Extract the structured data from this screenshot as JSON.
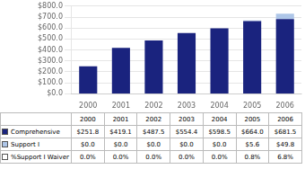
{
  "chart_data": {
    "type": "bar",
    "stacked": true,
    "categories": [
      "2000",
      "2001",
      "2002",
      "2003",
      "2004",
      "2005",
      "2006"
    ],
    "series": [
      {
        "name": "Comprehensive",
        "color": "#1a237e",
        "values": [
          251.8,
          419.1,
          487.5,
          554.4,
          598.5,
          664.0,
          681.5
        ],
        "value_labels": [
          "$251.8",
          "$419.1",
          "$487.5",
          "$554.4",
          "$598.5",
          "$664.0",
          "$681.5"
        ]
      },
      {
        "name": "Support I",
        "color": "#aec6e8",
        "values": [
          0.0,
          0.0,
          0.0,
          0.0,
          0.0,
          5.6,
          49.8
        ],
        "value_labels": [
          "$0.0",
          "$0.0",
          "$0.0",
          "$0.0",
          "$0.0",
          "$5.6",
          "$49.8"
        ]
      }
    ],
    "table": [
      {
        "name": "%Support I Waiver",
        "values": [
          0.0,
          0.0,
          0.0,
          0.0,
          0.0,
          0.8,
          6.8
        ],
        "value_labels": [
          "0.0%",
          "0.0%",
          "0.0%",
          "0.0%",
          "0.0%",
          "0.8%",
          "6.8%"
        ]
      }
    ],
    "ylim": [
      0,
      800
    ],
    "yticks": [
      {
        "value": 0,
        "label": "$0.0"
      },
      {
        "value": 100,
        "label": "$100.0"
      },
      {
        "value": 200,
        "label": "$200.0"
      },
      {
        "value": 300,
        "label": "$300.0"
      },
      {
        "value": 400,
        "label": "$400.0"
      },
      {
        "value": 500,
        "label": "$500.0"
      },
      {
        "value": 600,
        "label": "$600.0"
      },
      {
        "value": 700,
        "label": "$700.0"
      },
      {
        "value": 800,
        "label": "$800.0"
      }
    ],
    "grid": true
  }
}
